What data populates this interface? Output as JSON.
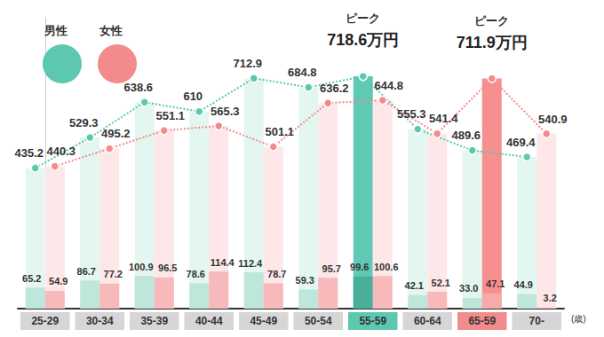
{
  "chart_data": {
    "type": "bar",
    "x_label": "(歳)",
    "categories": [
      "25-29",
      "30-34",
      "35-39",
      "40-44",
      "45-49",
      "50-54",
      "55-59",
      "60-64",
      "65-59",
      "70-"
    ],
    "series": [
      {
        "name": "男性",
        "type": "line",
        "color": "#5cc8b0",
        "marker": "circle",
        "line_style": "dotted",
        "values": [
          435.2,
          529.3,
          638.6,
          610,
          712.9,
          684.8,
          718.6,
          555.3,
          489.6,
          469.4
        ],
        "colors": [
          "#e4f6f0",
          "#e4f6f0",
          "#e4f6f0",
          "#e4f6f0",
          "#e4f6f0",
          "#e4f6f0",
          "#5fc9b5",
          "#e4f6f0",
          "#e4f6f0",
          "#e4f6f0"
        ],
        "lower_values": [
          65.2,
          86.7,
          100.9,
          78.6,
          112.4,
          59.3,
          99.6,
          42.1,
          33.0,
          44.9
        ],
        "lower_value_labels": [
          "65.2",
          "86.7",
          "100.9",
          "78.6",
          "112.4",
          "59.3",
          "99.6",
          "42.1",
          "33.0",
          "44.9"
        ],
        "lower_colors": [
          "#bfe6da",
          "#bfe6da",
          "#bfe6da",
          "#bfe6da",
          "#bfe6da",
          "#bfe6da",
          "#4aae9c",
          "#bfe6da",
          "#bfe6da",
          "#bfe6da"
        ]
      },
      {
        "name": "女性",
        "type": "line",
        "color": "#f28b8b",
        "marker": "circle",
        "line_style": "dotted",
        "values": [
          440.3,
          495.2,
          551.1,
          565.3,
          501.1,
          636.2,
          644.8,
          541.4,
          711.9,
          540.9
        ],
        "colors": [
          "#fde7e9",
          "#fde7e9",
          "#fde7e9",
          "#fde7e9",
          "#fde7e9",
          "#fde7e9",
          "#fde7e9",
          "#fde7e9",
          "#f68f8e",
          "#fde7e9"
        ],
        "lower_values": [
          54.9,
          77.2,
          96.5,
          114.4,
          78.7,
          95.7,
          100.6,
          52.1,
          47.1,
          3.2
        ],
        "lower_value_labels": [
          "54.9",
          "77.2",
          "96.5",
          "114.4",
          "78.7",
          "95.7",
          "100.6",
          "52.1",
          "47.1",
          "3.2"
        ],
        "lower_colors": [
          "#f8b9bb",
          "#f8b9bb",
          "#f8b9bb",
          "#f8b9bb",
          "#f8b9bb",
          "#f8b9bb",
          "#f8b9bb",
          "#f8b9bb",
          "#f9a9a8",
          "#f8b9bb"
        ]
      }
    ],
    "annotations": [
      {
        "series": "男性",
        "category": "55-59",
        "title": "ピーク",
        "label": "718.6万円"
      },
      {
        "series": "女性",
        "category": "65-59",
        "title": "ピーク",
        "label": "711.9万円"
      }
    ],
    "ylim": [
      0,
      900
    ],
    "tick_labels": "x",
    "grid": false,
    "legend": "top-left",
    "data_labels": true
  }
}
